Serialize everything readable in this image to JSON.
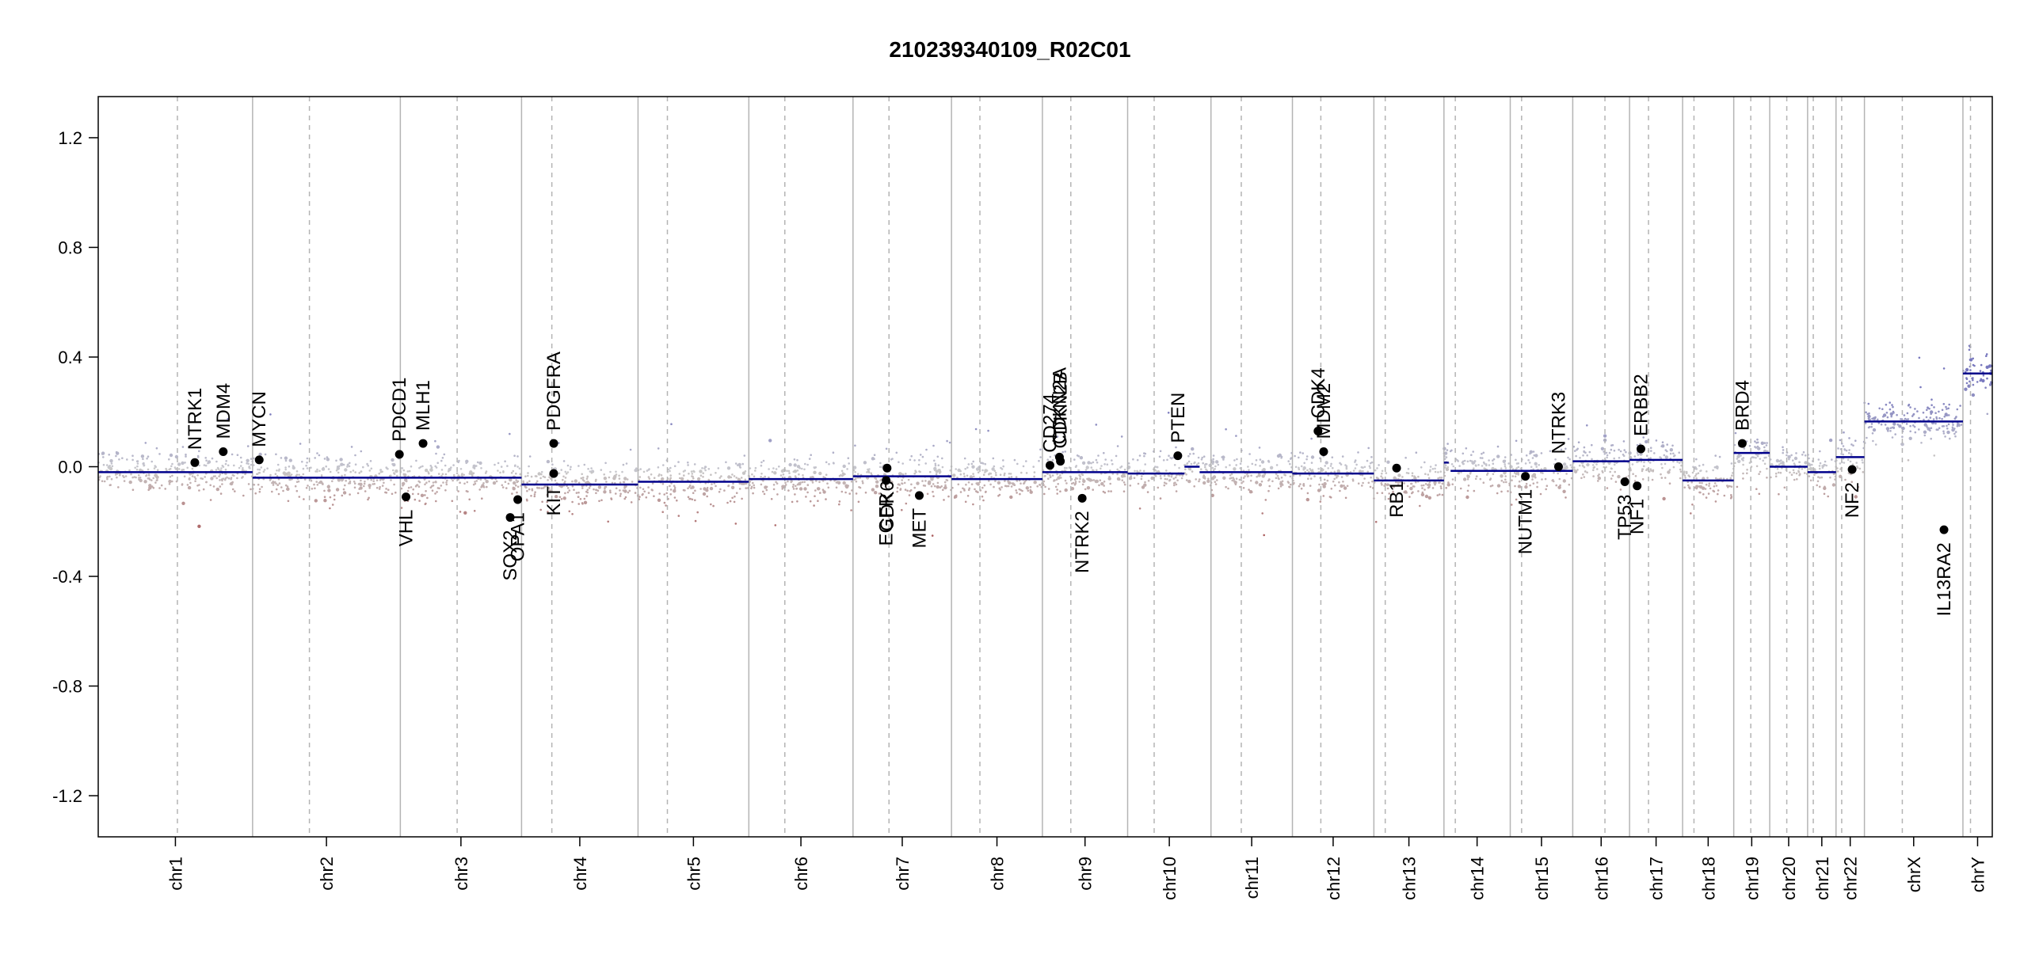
{
  "chart_data": {
    "type": "scatter",
    "title": "210239340109_R02C01",
    "xlabel": "",
    "ylabel": "",
    "ylim": [
      -1.35,
      1.35
    ],
    "yticks": [
      -1.2,
      -0.8,
      -0.4,
      0.0,
      0.4,
      0.8,
      1.2
    ],
    "ytick_labels": [
      "-1.2",
      "-0.8",
      "-0.4",
      "0.0",
      "0.4",
      "0.8",
      "1.2"
    ],
    "grid": false,
    "colors": {
      "segment": "#00008b",
      "gain": "#8c8cc8",
      "loss": "#b45050",
      "neutral": "#c8c8c8",
      "boundary": "#b4b4b4",
      "gene": "#000000"
    },
    "chromosomes": [
      {
        "name": "chr1",
        "start": 0.0,
        "end": 0.0815,
        "centromere": 0.0418
      },
      {
        "name": "chr2",
        "start": 0.0815,
        "end": 0.1595,
        "centromere": 0.1115
      },
      {
        "name": "chr3",
        "start": 0.1595,
        "end": 0.2235,
        "centromere": 0.1895
      },
      {
        "name": "chr4",
        "start": 0.2235,
        "end": 0.285,
        "centromere": 0.2395
      },
      {
        "name": "chr5",
        "start": 0.285,
        "end": 0.3435,
        "centromere": 0.3005
      },
      {
        "name": "chr6",
        "start": 0.3435,
        "end": 0.3985,
        "centromere": 0.3625
      },
      {
        "name": "chr7",
        "start": 0.3985,
        "end": 0.4505,
        "centromere": 0.4175
      },
      {
        "name": "chr8",
        "start": 0.4505,
        "end": 0.4985,
        "centromere": 0.4655
      },
      {
        "name": "chr9",
        "start": 0.4985,
        "end": 0.5435,
        "centromere": 0.5135
      },
      {
        "name": "chr10",
        "start": 0.5435,
        "end": 0.5875,
        "centromere": 0.5575
      },
      {
        "name": "chr11",
        "start": 0.5875,
        "end": 0.6305,
        "centromere": 0.6035
      },
      {
        "name": "chr12",
        "start": 0.6305,
        "end": 0.6735,
        "centromere": 0.6455
      },
      {
        "name": "chr13",
        "start": 0.6735,
        "end": 0.7105,
        "centromere": 0.6795
      },
      {
        "name": "chr14",
        "start": 0.7105,
        "end": 0.7455,
        "centromere": 0.7165
      },
      {
        "name": "chr15",
        "start": 0.7455,
        "end": 0.7785,
        "centromere": 0.7515
      },
      {
        "name": "chr16",
        "start": 0.7785,
        "end": 0.8085,
        "centromere": 0.7955
      },
      {
        "name": "chr17",
        "start": 0.8085,
        "end": 0.8365,
        "centromere": 0.8185
      },
      {
        "name": "chr18",
        "start": 0.8365,
        "end": 0.8635,
        "centromere": 0.8425
      },
      {
        "name": "chr19",
        "start": 0.8635,
        "end": 0.8825,
        "centromere": 0.8725
      },
      {
        "name": "chr20",
        "start": 0.8825,
        "end": 0.9025,
        "centromere": 0.8915
      },
      {
        "name": "chr21",
        "start": 0.9025,
        "end": 0.9175,
        "centromere": 0.9055
      },
      {
        "name": "chr22",
        "start": 0.9175,
        "end": 0.9325,
        "centromere": 0.9205
      },
      {
        "name": "chrX",
        "start": 0.9325,
        "end": 0.9845,
        "centromere": 0.9525
      },
      {
        "name": "chrY",
        "start": 0.9845,
        "end": 1.0,
        "centromere": 0.9885
      }
    ],
    "segments": [
      {
        "chr": "chr1",
        "x0": 0.0,
        "x1": 0.0815,
        "y": -0.02
      },
      {
        "chr": "chr2",
        "x0": 0.0815,
        "x1": 0.1595,
        "y": -0.04
      },
      {
        "chr": "chr3",
        "x0": 0.1595,
        "x1": 0.2235,
        "y": -0.04
      },
      {
        "chr": "chr4",
        "x0": 0.2235,
        "x1": 0.285,
        "y": -0.065
      },
      {
        "chr": "chr5",
        "x0": 0.285,
        "x1": 0.3435,
        "y": -0.055
      },
      {
        "chr": "chr6",
        "x0": 0.3435,
        "x1": 0.3985,
        "y": -0.045
      },
      {
        "chr": "chr7",
        "x0": 0.3985,
        "x1": 0.4505,
        "y": -0.035
      },
      {
        "chr": "chr8",
        "x0": 0.4505,
        "x1": 0.4985,
        "y": -0.045
      },
      {
        "chr": "chr9",
        "x0": 0.4985,
        "x1": 0.5435,
        "y": -0.02
      },
      {
        "chr": "chr10",
        "x0": 0.5435,
        "x1": 0.5735,
        "y": -0.025
      },
      {
        "chr": "chr10",
        "x0": 0.5735,
        "x1": 0.5815,
        "y": 0.0
      },
      {
        "chr": "chr10",
        "x0": 0.5815,
        "x1": 0.5875,
        "y": -0.02
      },
      {
        "chr": "chr11",
        "x0": 0.5875,
        "x1": 0.6305,
        "y": -0.02
      },
      {
        "chr": "chr12",
        "x0": 0.6305,
        "x1": 0.6735,
        "y": -0.025
      },
      {
        "chr": "chr13",
        "x0": 0.6735,
        "x1": 0.7105,
        "y": -0.05
      },
      {
        "chr": "chr14",
        "x0": 0.7105,
        "x1": 0.713,
        "y": 0.015
      },
      {
        "chr": "chr14",
        "x0": 0.714,
        "x1": 0.7455,
        "y": -0.015
      },
      {
        "chr": "chr15",
        "x0": 0.7455,
        "x1": 0.7785,
        "y": -0.015
      },
      {
        "chr": "chr16",
        "x0": 0.7785,
        "x1": 0.8085,
        "y": 0.02
      },
      {
        "chr": "chr17",
        "x0": 0.8085,
        "x1": 0.8365,
        "y": 0.025
      },
      {
        "chr": "chr18",
        "x0": 0.8365,
        "x1": 0.8635,
        "y": -0.05
      },
      {
        "chr": "chr19",
        "x0": 0.8635,
        "x1": 0.8825,
        "y": 0.05
      },
      {
        "chr": "chr20",
        "x0": 0.8825,
        "x1": 0.9025,
        "y": 0.0
      },
      {
        "chr": "chr21",
        "x0": 0.9025,
        "x1": 0.9175,
        "y": -0.02
      },
      {
        "chr": "chr22",
        "x0": 0.9175,
        "x1": 0.9325,
        "y": 0.035
      },
      {
        "chr": "chrX",
        "x0": 0.9325,
        "x1": 0.9845,
        "y": 0.165
      },
      {
        "chr": "chrY",
        "x0": 0.9845,
        "x1": 1.0,
        "y": 0.34
      }
    ],
    "genes": [
      {
        "name": "NTRK1",
        "x": 0.051,
        "y": 0.015
      },
      {
        "name": "MDM4",
        "x": 0.066,
        "y": 0.055
      },
      {
        "name": "MYCN",
        "x": 0.085,
        "y": 0.025
      },
      {
        "name": "PDCD1",
        "x": 0.159,
        "y": 0.045
      },
      {
        "name": "VHL",
        "x": 0.1625,
        "y": -0.11
      },
      {
        "name": "MLH1",
        "x": 0.1715,
        "y": 0.085
      },
      {
        "name": "SOX2",
        "x": 0.2175,
        "y": -0.185
      },
      {
        "name": "OPA1",
        "x": 0.2215,
        "y": -0.12
      },
      {
        "name": "PDGFRA",
        "x": 0.2405,
        "y": 0.085
      },
      {
        "name": "KIT",
        "x": 0.2405,
        "y": -0.025
      },
      {
        "name": "EGFR",
        "x": 0.416,
        "y": -0.05
      },
      {
        "name": "CDK6",
        "x": 0.4165,
        "y": -0.005
      },
      {
        "name": "MET",
        "x": 0.4335,
        "y": -0.105
      },
      {
        "name": "CD274",
        "x": 0.5025,
        "y": 0.005
      },
      {
        "name": "CDKN2A",
        "x": 0.5075,
        "y": 0.035
      },
      {
        "name": "CDKN2B",
        "x": 0.508,
        "y": 0.02
      },
      {
        "name": "NTRK2",
        "x": 0.5195,
        "y": -0.115
      },
      {
        "name": "PTEN",
        "x": 0.57,
        "y": 0.04
      },
      {
        "name": "CDK4",
        "x": 0.644,
        "y": 0.13
      },
      {
        "name": "MDM2",
        "x": 0.647,
        "y": 0.055
      },
      {
        "name": "RB1",
        "x": 0.6855,
        "y": -0.005
      },
      {
        "name": "NUTM1",
        "x": 0.7535,
        "y": -0.035
      },
      {
        "name": "NTRK3",
        "x": 0.771,
        "y": 0.0
      },
      {
        "name": "TP53",
        "x": 0.806,
        "y": -0.055
      },
      {
        "name": "NF1",
        "x": 0.8125,
        "y": -0.07
      },
      {
        "name": "ERBB2",
        "x": 0.8145,
        "y": 0.065
      },
      {
        "name": "BRD4",
        "x": 0.868,
        "y": 0.085
      },
      {
        "name": "NF2",
        "x": 0.926,
        "y": -0.01
      },
      {
        "name": "IL13RA2",
        "x": 0.9745,
        "y": -0.23
      }
    ]
  }
}
